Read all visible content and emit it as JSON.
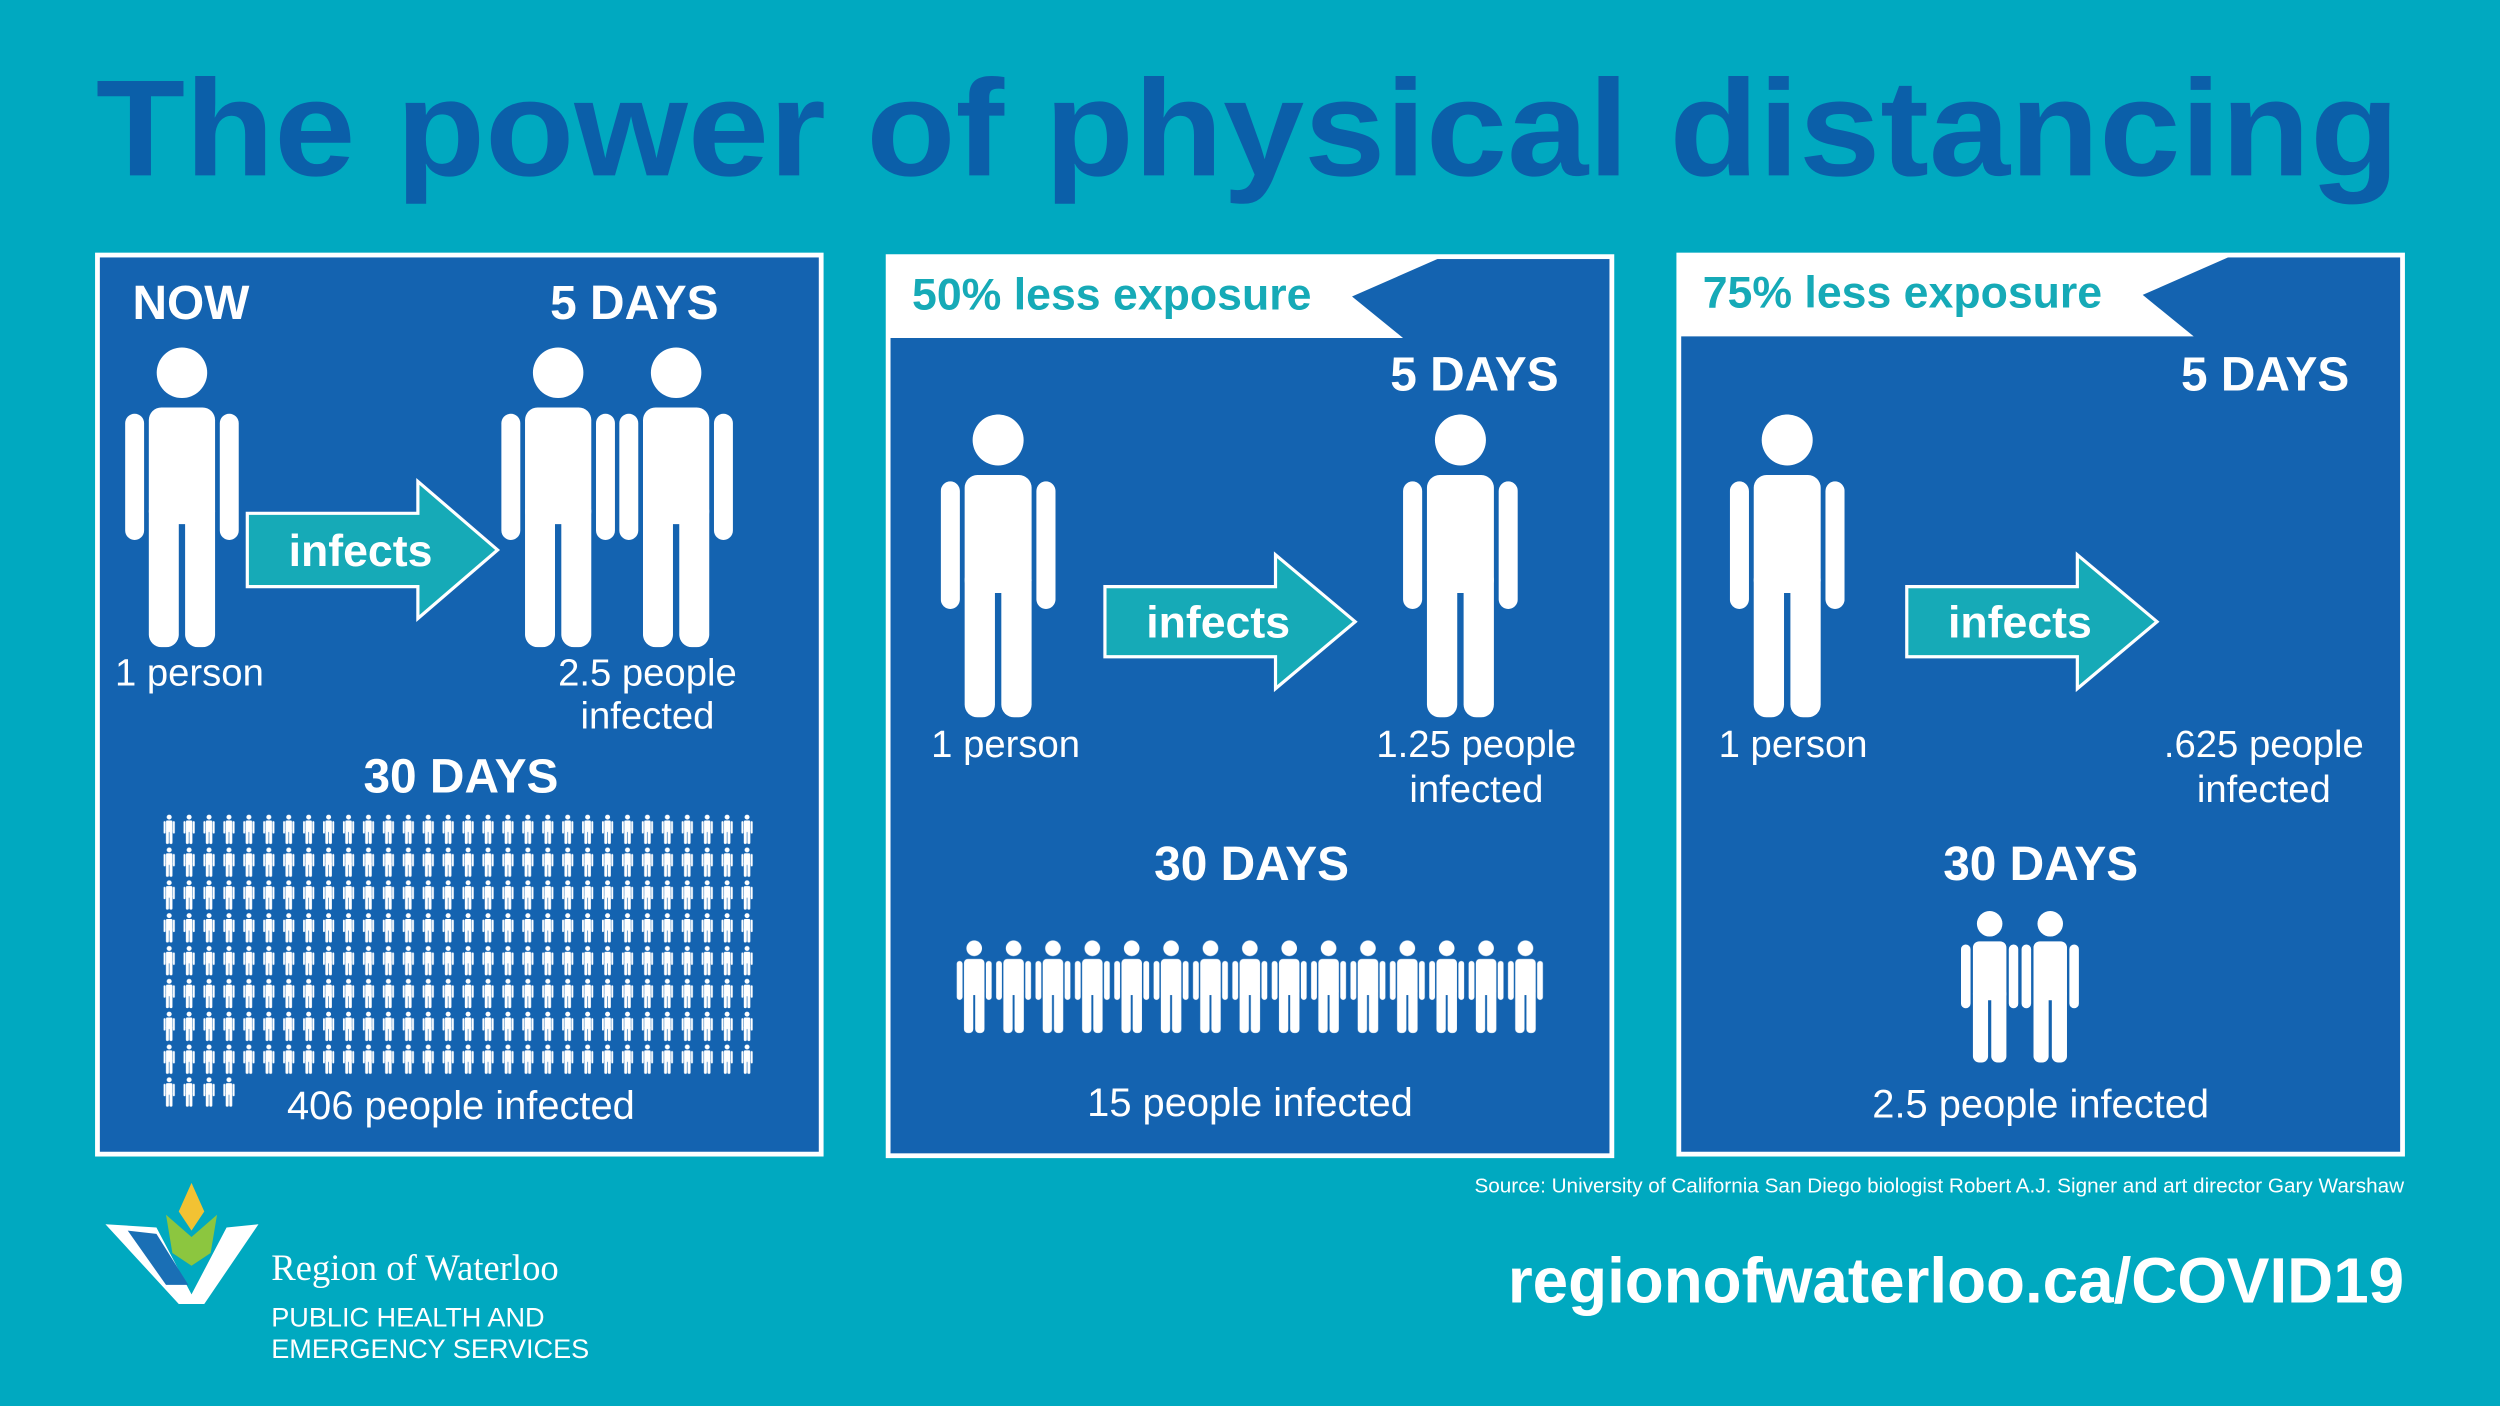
{
  "title": "The power of physical distancing",
  "panels": [
    {
      "heading": "NOW",
      "days5": "5 DAYS",
      "verb": "infects",
      "source_label": "1 person",
      "result_label": [
        "2.5 people",
        "infected"
      ],
      "days30": "30 DAYS",
      "total": "406 people infected"
    },
    {
      "exposure": "50% less exposure",
      "days5": "5 DAYS",
      "verb": "infects",
      "source_label": "1 person",
      "result_label": [
        "1.25 people",
        "infected"
      ],
      "days30": "30 DAYS",
      "total": "15 people infected"
    },
    {
      "exposure": "75% less exposure",
      "days5": "5 DAYS",
      "verb": "infects",
      "source_label": "1 person",
      "result_label": [
        ".625 people",
        "infected"
      ],
      "days30": "30 DAYS",
      "total": "2.5 people infected"
    }
  ],
  "source": "Source: University of California San Diego biologist Robert A.J. Signer and art director Gary Warshaw",
  "logo": {
    "name": "Region of Waterloo",
    "dept": [
      "PUBLIC HEALTH AND",
      "EMERGENCY SERVICES"
    ]
  },
  "url": "regionofwaterloo.ca/COVID19"
}
